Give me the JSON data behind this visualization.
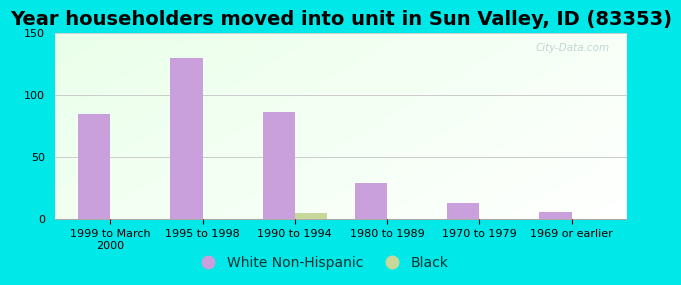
{
  "title": "Year householders moved into unit in Sun Valley, ID (83353)",
  "categories": [
    "1999 to March\n2000",
    "1995 to 1998",
    "1990 to 1994",
    "1980 to 1989",
    "1970 to 1979",
    "1969 or earlier"
  ],
  "white_values": [
    85,
    130,
    86,
    29,
    13,
    6
  ],
  "black_values": [
    0,
    0,
    5,
    0,
    0,
    0
  ],
  "white_color": "#c9a0dc",
  "black_color": "#c8d89a",
  "ylim": [
    0,
    150
  ],
  "yticks": [
    0,
    50,
    100,
    150
  ],
  "outer_bg": "#00e8e8",
  "grid_color": "#cccccc",
  "bar_width": 0.35,
  "title_fontsize": 14,
  "tick_fontsize": 8,
  "legend_fontsize": 10,
  "watermark": "City-Data.com"
}
